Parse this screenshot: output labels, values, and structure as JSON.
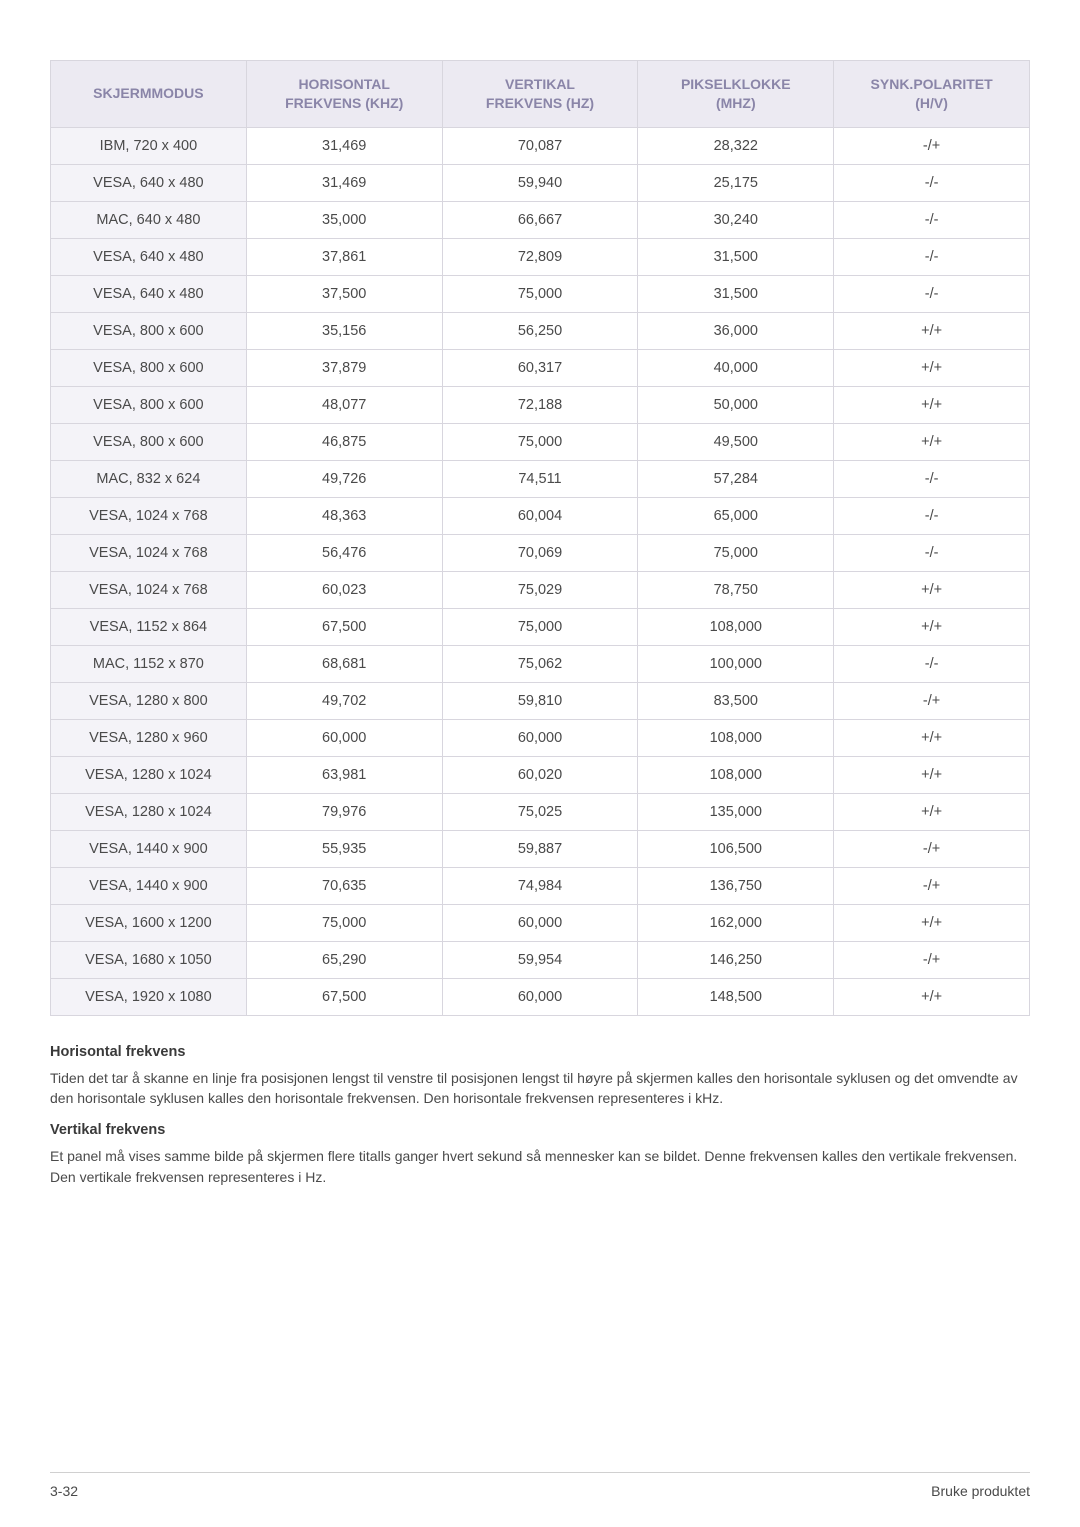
{
  "table": {
    "columns": [
      {
        "line1": "SKJERMMODUS",
        "line2": ""
      },
      {
        "line1": "HORISONTAL",
        "line2": "FREKVENS (KHZ)"
      },
      {
        "line1": "VERTIKAL",
        "line2": "FREKVENS (HZ)"
      },
      {
        "line1": "PIKSELKLOKKE",
        "line2": "(MHZ)"
      },
      {
        "line1": "SYNK.POLARITET",
        "line2": "(H/V)"
      }
    ],
    "column_widths_pct": [
      20,
      20,
      20,
      20,
      20
    ],
    "header_bg": "#eceaf2",
    "header_text_color": "#8a85a8",
    "first_col_bg": "#f4f3f8",
    "border_color": "#d8d6de",
    "cell_fontsize": 14.5,
    "header_fontsize": 14,
    "rows": [
      [
        "IBM, 720 x 400",
        "31,469",
        "70,087",
        "28,322",
        "-/+"
      ],
      [
        "VESA, 640 x 480",
        "31,469",
        "59,940",
        "25,175",
        "-/-"
      ],
      [
        "MAC, 640 x 480",
        "35,000",
        "66,667",
        "30,240",
        "-/-"
      ],
      [
        "VESA, 640 x 480",
        "37,861",
        "72,809",
        "31,500",
        "-/-"
      ],
      [
        "VESA, 640 x 480",
        "37,500",
        "75,000",
        "31,500",
        "-/-"
      ],
      [
        "VESA, 800 x 600",
        "35,156",
        "56,250",
        "36,000",
        "+/+"
      ],
      [
        "VESA, 800 x 600",
        "37,879",
        "60,317",
        "40,000",
        "+/+"
      ],
      [
        "VESA, 800 x 600",
        "48,077",
        "72,188",
        "50,000",
        "+/+"
      ],
      [
        "VESA, 800 x 600",
        "46,875",
        "75,000",
        "49,500",
        "+/+"
      ],
      [
        "MAC, 832 x 624",
        "49,726",
        "74,511",
        "57,284",
        "-/-"
      ],
      [
        "VESA, 1024 x 768",
        "48,363",
        "60,004",
        "65,000",
        "-/-"
      ],
      [
        "VESA, 1024 x 768",
        "56,476",
        "70,069",
        "75,000",
        "-/-"
      ],
      [
        "VESA, 1024 x 768",
        "60,023",
        "75,029",
        "78,750",
        "+/+"
      ],
      [
        "VESA, 1152 x 864",
        "67,500",
        "75,000",
        "108,000",
        "+/+"
      ],
      [
        "MAC, 1152 x 870",
        "68,681",
        "75,062",
        "100,000",
        "-/-"
      ],
      [
        "VESA, 1280 x 800",
        "49,702",
        "59,810",
        "83,500",
        "-/+"
      ],
      [
        "VESA, 1280 x 960",
        "60,000",
        "60,000",
        "108,000",
        "+/+"
      ],
      [
        "VESA, 1280 x 1024",
        "63,981",
        "60,020",
        "108,000",
        "+/+"
      ],
      [
        "VESA, 1280 x 1024",
        "79,976",
        "75,025",
        "135,000",
        "+/+"
      ],
      [
        "VESA, 1440 x 900",
        "55,935",
        "59,887",
        "106,500",
        "-/+"
      ],
      [
        "VESA, 1440 x 900",
        "70,635",
        "74,984",
        "136,750",
        "-/+"
      ],
      [
        "VESA, 1600 x 1200",
        "75,000",
        "60,000",
        "162,000",
        "+/+"
      ],
      [
        "VESA, 1680 x 1050",
        "65,290",
        "59,954",
        "146,250",
        "-/+"
      ],
      [
        "VESA, 1920 x 1080",
        "67,500",
        "60,000",
        "148,500",
        "+/+"
      ]
    ]
  },
  "sections": {
    "horizontal": {
      "title": "Horisontal frekvens",
      "body": "Tiden det tar å skanne en linje fra posisjonen lengst til venstre til posisjonen lengst til høyre på skjermen kalles den horisontale syklusen og det omvendte av den horisontale syklusen kalles den horisontale frekvensen. Den horisontale frekvensen representeres i kHz."
    },
    "vertical": {
      "title": "Vertikal frekvens",
      "body": "Et panel må vises samme bilde på skjermen flere titalls ganger hvert sekund så mennesker kan se bildet. Denne frekvensen kalles den vertikale frekvensen. Den vertikale frekvensen representeres i Hz."
    }
  },
  "footer": {
    "page": "3-32",
    "chapter": "Bruke produktet"
  },
  "style": {
    "body_text_color": "#4a4a4a",
    "heading_color": "#3a3a3a",
    "footer_border_color": "#d0d0d0",
    "background_color": "#ffffff"
  }
}
